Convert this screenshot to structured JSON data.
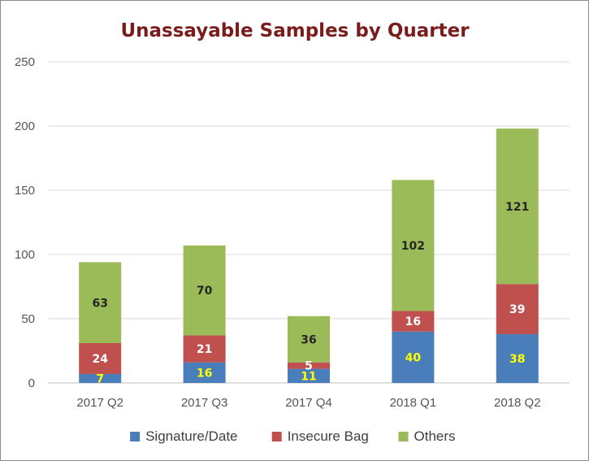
{
  "chart_data": {
    "type": "bar",
    "stacked": true,
    "title": "Unassayable Samples by Quarter",
    "xlabel": "",
    "ylabel": "",
    "categories": [
      "2017 Q2",
      "2017 Q3",
      "2017 Q4",
      "2018 Q1",
      "2018 Q2"
    ],
    "series": [
      {
        "name": "Signature/Date",
        "color": "#4a7ebb",
        "label_color": "#ffff00",
        "values": [
          7,
          16,
          11,
          40,
          38
        ]
      },
      {
        "name": "Insecure Bag",
        "color": "#c0504d",
        "label_color": "#ffffff",
        "values": [
          24,
          21,
          5,
          16,
          39
        ]
      },
      {
        "name": "Others",
        "color": "#9bbb59",
        "label_color": "#262626",
        "values": [
          63,
          70,
          36,
          102,
          121
        ]
      }
    ],
    "ylim": [
      0,
      250
    ],
    "yticks": [
      0,
      50,
      100,
      150,
      200,
      250
    ],
    "grid": true,
    "legend_position": "bottom"
  }
}
